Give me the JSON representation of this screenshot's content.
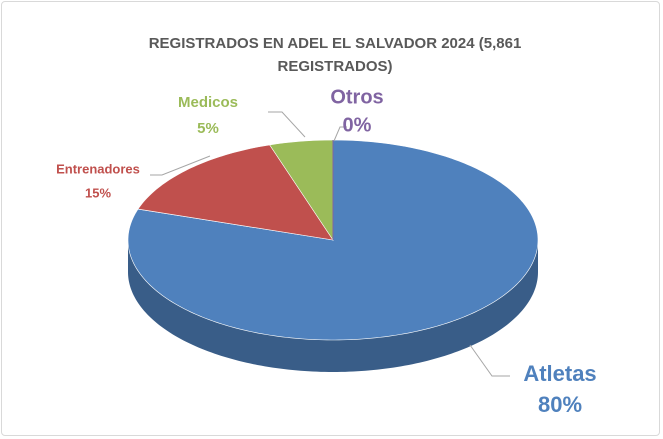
{
  "chart_data": {
    "type": "pie3d",
    "title": "REGISTRADOS EN ADEL EL SALVADOR 2024 (5,861 REGISTRADOS)",
    "categories": [
      "Atletas",
      "Entrenadores",
      "Medicos",
      "Otros"
    ],
    "values": [
      80,
      15,
      5,
      0
    ],
    "value_labels": [
      "80%",
      "15%",
      "5%",
      "0%"
    ],
    "colors": [
      "#4f81bd",
      "#c0504d",
      "#9bbb59",
      "#8064a2"
    ]
  }
}
